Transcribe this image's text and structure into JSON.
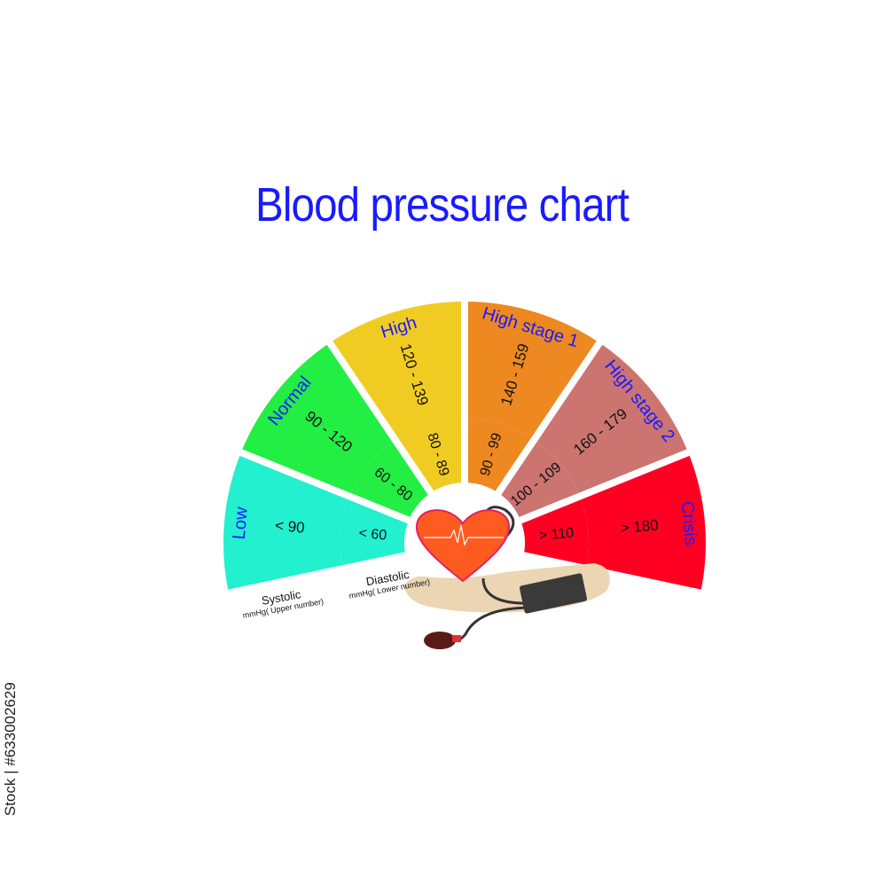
{
  "title": "Blood pressure chart",
  "watermark": "Stock | #633002629",
  "segments": [
    {
      "category": "Low",
      "systolic": "< 90",
      "diastolic": "< 60",
      "color": "#22f0cf"
    },
    {
      "category": "Normal",
      "systolic": "90 - 120",
      "diastolic": "60 - 80",
      "color": "#22ee44"
    },
    {
      "category": "High",
      "systolic": "120 - 139",
      "diastolic": "80 - 89",
      "color": "#f0cc22"
    },
    {
      "category": "High stage 1",
      "systolic": "140 - 159",
      "diastolic": "90 - 99",
      "color": "#ee8820"
    },
    {
      "category": "High stage 2",
      "systolic": "160 - 179",
      "diastolic": "100 - 109",
      "color": "#cc7470"
    },
    {
      "category": "Crisis",
      "systolic": "> 180",
      "diastolic": "> 110",
      "color": "#ff0022"
    }
  ],
  "systolic_label": {
    "title": "Systolic",
    "unit": "mmHg( Upper number)"
  },
  "diastolic_label": {
    "title": "Diastolic",
    "unit": "mmHg( Lower number)"
  },
  "label_color": "#1a1aff"
}
